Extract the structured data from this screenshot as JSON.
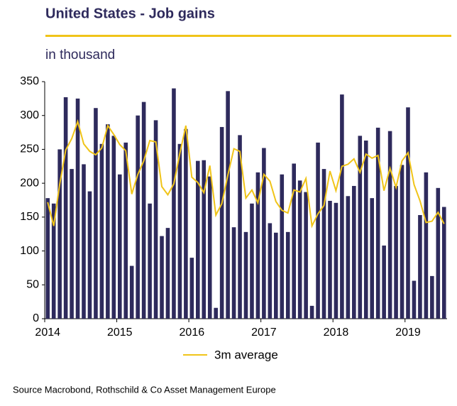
{
  "chart_data": {
    "type": "bar",
    "title": "United States - Job gains",
    "subtitle": "in thousand",
    "source": "Source Macrobond, Rothschild & Co Asset Management Europe",
    "categories": [
      "2014",
      null,
      null,
      null,
      null,
      null,
      null,
      null,
      null,
      null,
      null,
      null,
      "2015",
      null,
      null,
      null,
      null,
      null,
      null,
      null,
      null,
      null,
      null,
      null,
      "2016",
      null,
      null,
      null,
      null,
      null,
      null,
      null,
      null,
      null,
      null,
      null,
      "2017",
      null,
      null,
      null,
      null,
      null,
      null,
      null,
      null,
      null,
      null,
      null,
      "2018",
      null,
      null,
      null,
      null,
      null,
      null,
      null,
      null,
      null,
      null,
      null,
      "2019",
      null,
      null,
      null,
      null,
      null,
      null
    ],
    "series": [
      {
        "name": "Job gains",
        "type": "bar",
        "color": "#2e2a5c",
        "values": [
          178,
          170,
          250,
          327,
          221,
          325,
          228,
          188,
          311,
          258,
          287,
          270,
          213,
          260,
          78,
          300,
          320,
          170,
          293,
          122,
          134,
          340,
          258,
          280,
          90,
          233,
          234,
          210,
          16,
          283,
          336,
          135,
          271,
          128,
          170,
          216,
          252,
          141,
          127,
          213,
          128,
          229,
          204,
          187,
          19,
          260,
          221,
          174,
          171,
          331,
          181,
          196,
          270,
          263,
          178,
          282,
          108,
          277,
          196,
          227,
          312,
          56,
          153,
          216,
          63,
          193,
          165
        ]
      },
      {
        "name": "3m average",
        "type": "line",
        "color": "#f0c419",
        "values": [
          172,
          137,
          199,
          249,
          266,
          291,
          258,
          247,
          242,
          252,
          285,
          272,
          257,
          248,
          184,
          213,
          233,
          263,
          261,
          195,
          183,
          199,
          244,
          285,
          209,
          201,
          186,
          226,
          153,
          170,
          212,
          251,
          247,
          178,
          190,
          171,
          213,
          203,
          173,
          160,
          156,
          190,
          187,
          207,
          137,
          155,
          167,
          218,
          189,
          225,
          228,
          236,
          216,
          243,
          237,
          241,
          189,
          222,
          194,
          233,
          245,
          198,
          174,
          142,
          144,
          157,
          140
        ]
      }
    ],
    "ylim": [
      0,
      350
    ],
    "yticks": [
      0,
      50,
      100,
      150,
      200,
      250,
      300,
      350
    ],
    "grid": false,
    "legend": "bottom"
  }
}
